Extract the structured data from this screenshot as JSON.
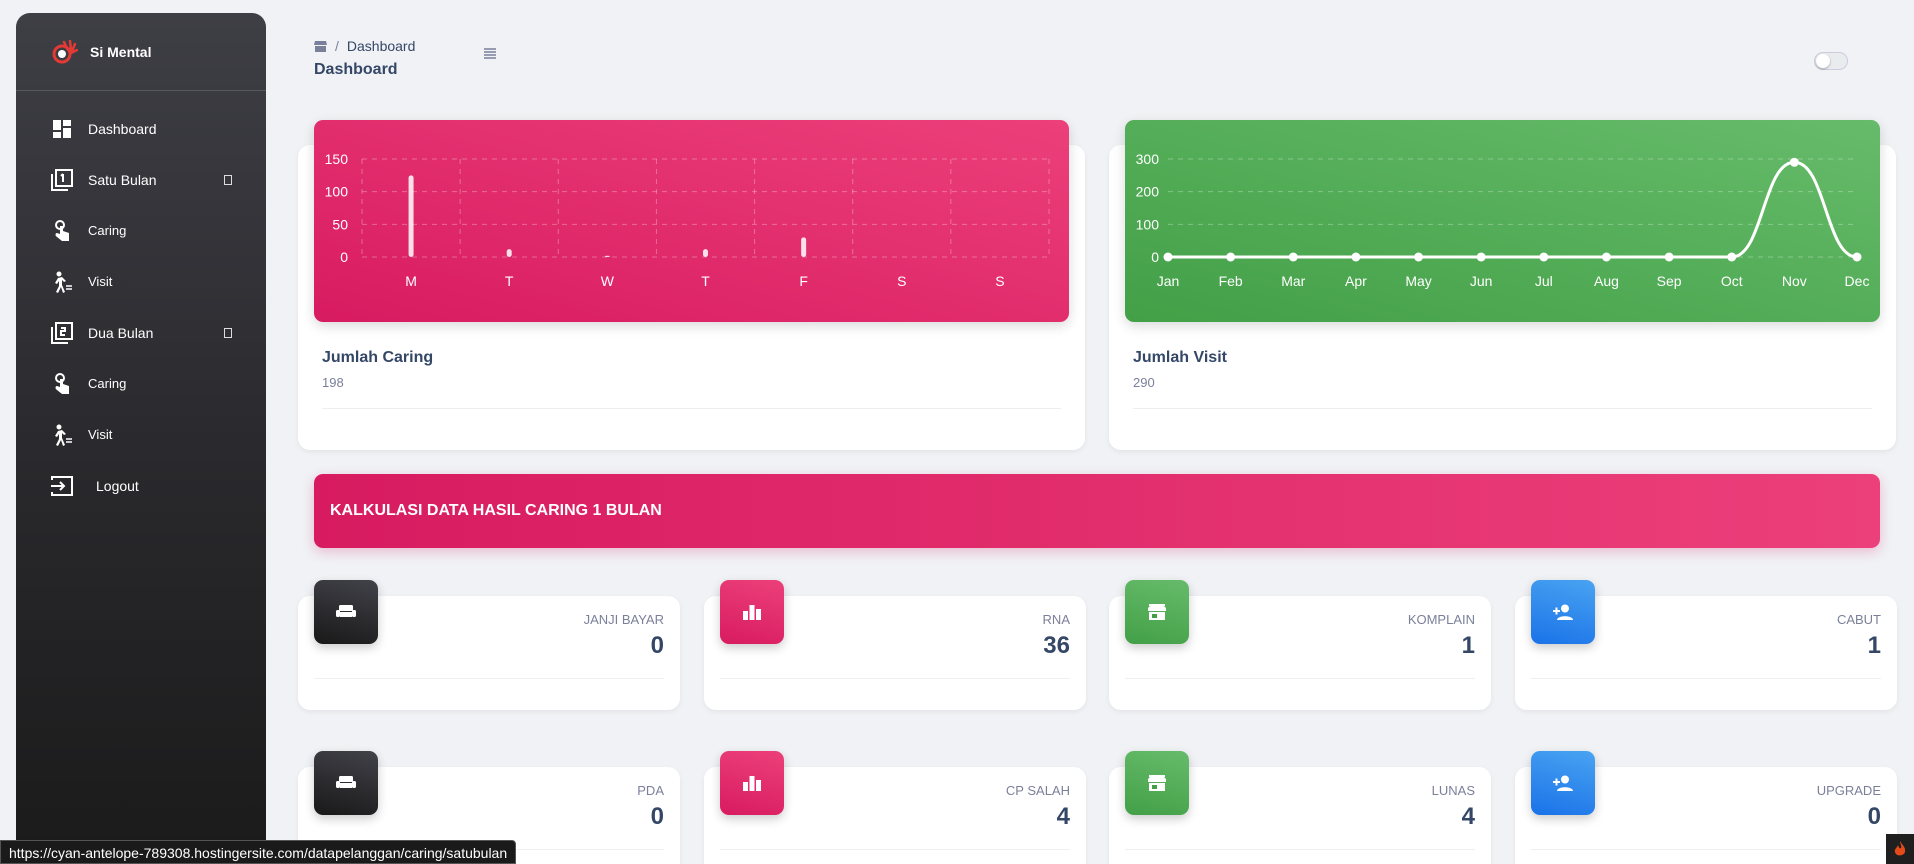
{
  "sidebar": {
    "brand": "Si Mental",
    "items": [
      {
        "label": "Dashboard",
        "icon": "dashboard-icon"
      },
      {
        "label": "Satu Bulan",
        "icon": "filter-1-icon"
      },
      {
        "label": "Caring",
        "icon": "touch-icon"
      },
      {
        "label": "Visit",
        "icon": "walk-icon"
      },
      {
        "label": "Dua Bulan",
        "icon": "filter-2-icon"
      },
      {
        "label": "Caring",
        "icon": "touch-icon"
      },
      {
        "label": "Visit",
        "icon": "walk-icon"
      },
      {
        "label": "Logout",
        "icon": "login-icon"
      }
    ]
  },
  "header": {
    "breadcrumb_current": "Dashboard",
    "title": "Dashboard"
  },
  "charts": {
    "caring": {
      "title": "Jumlah Caring",
      "subtitle": "198"
    },
    "visit": {
      "title": "Jumlah Visit",
      "subtitle": "290"
    }
  },
  "chart_data": [
    {
      "type": "bar",
      "categories": [
        "M",
        "T",
        "W",
        "T",
        "F",
        "S",
        "S"
      ],
      "values": [
        125,
        12,
        2,
        12,
        30,
        0,
        0
      ],
      "ylim": [
        0,
        150
      ],
      "yticks": [
        0,
        50,
        100,
        150
      ],
      "grid": true
    },
    {
      "type": "line",
      "categories": [
        "Jan",
        "Feb",
        "Mar",
        "Apr",
        "May",
        "Jun",
        "Jul",
        "Aug",
        "Sep",
        "Oct",
        "Nov",
        "Dec"
      ],
      "values": [
        0,
        0,
        0,
        0,
        0,
        0,
        0,
        0,
        0,
        0,
        290,
        0
      ],
      "ylim": [
        0,
        300
      ],
      "yticks": [
        0,
        100,
        200,
        300
      ],
      "grid": true
    }
  ],
  "banner": {
    "text": "KALKULASI DATA HASIL CARING 1 BULAN"
  },
  "stats": [
    {
      "label": "JANJI BAYAR",
      "value": "0",
      "icon": "weekend-icon",
      "color": "#191919"
    },
    {
      "label": "RNA",
      "value": "36",
      "icon": "leaderboard-icon",
      "color": "#d81b60"
    },
    {
      "label": "KOMPLAIN",
      "value": "1",
      "icon": "store-icon",
      "color": "#43a047"
    },
    {
      "label": "CABUT",
      "value": "1",
      "icon": "person-add-icon",
      "color": "#1a73e8"
    },
    {
      "label": "PDA",
      "value": "0",
      "icon": "weekend-icon",
      "color": "#191919"
    },
    {
      "label": "CP SALAH",
      "value": "4",
      "icon": "leaderboard-icon",
      "color": "#d81b60"
    },
    {
      "label": "LUNAS",
      "value": "4",
      "icon": "store-icon",
      "color": "#43a047"
    },
    {
      "label": "UPGRADE",
      "value": "0",
      "icon": "person-add-icon",
      "color": "#1a73e8"
    }
  ],
  "statusbar": {
    "url": "https://cyan-antelope-789308.hostingersite.com/datapelanggan/caring/satubulan"
  }
}
